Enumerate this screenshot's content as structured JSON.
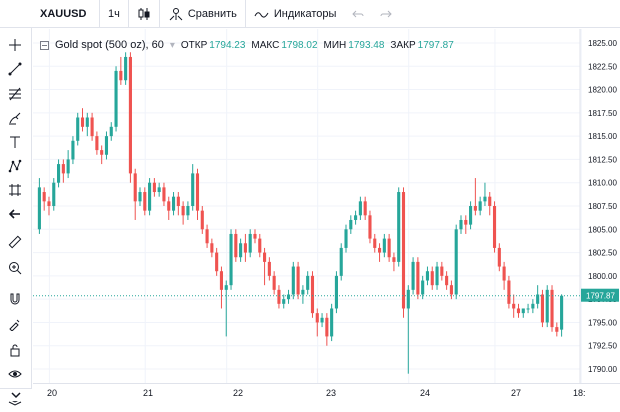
{
  "topbar": {
    "symbol": "XAUUSD",
    "interval": "1ч",
    "compare_label": "Сравнить",
    "indicators_label": "Индикаторы"
  },
  "legend": {
    "title": "Gold spot (500 oz), 60",
    "open_label": "ОТКР",
    "open_value": "1794.23",
    "high_label": "МАКС",
    "high_value": "1798.02",
    "low_label": "МИН",
    "low_value": "1793.48",
    "close_label": "ЗАКР",
    "close_value": "1797.87"
  },
  "colors": {
    "up": "#26a69a",
    "down": "#ef5350",
    "grid": "#f0f3fa",
    "accent": "#26a69a"
  },
  "toolbar_icons": [
    "cursor-cross-icon",
    "trend-line-icon",
    "fib-icon",
    "brush-icon",
    "text-icon",
    "pattern-icon",
    "prediction-icon",
    "back-arrow-icon",
    "ruler-icon",
    "zoom-in-icon",
    "magnet-icon",
    "lock-drawings-icon",
    "unlock-icon",
    "eye-icon",
    "layers-icon",
    "chevron-down-icon"
  ],
  "chart_data": {
    "type": "candlestick",
    "symbol": "XAUUSD",
    "y_ticks": [
      "1825.00",
      "1822.50",
      "1820.00",
      "1817.50",
      "1815.00",
      "1812.50",
      "1810.00",
      "1807.50",
      "1805.00",
      "1802.50",
      "1800.00",
      "1797.50",
      "1795.00",
      "1792.50",
      "1790.00"
    ],
    "ylim": [
      1788.5,
      1826.5
    ],
    "x_ticks": [
      "20",
      "21",
      "22",
      "23",
      "24",
      "27",
      "18:"
    ],
    "last_price": "1797.87",
    "candles": [
      [
        1805.0,
        1810.5,
        1804.5,
        1809.5
      ],
      [
        1809.0,
        1809.5,
        1807.0,
        1808.0
      ],
      [
        1808.0,
        1808.5,
        1806.5,
        1807.5
      ],
      [
        1807.5,
        1810.5,
        1807.0,
        1810.0
      ],
      [
        1810.0,
        1812.5,
        1809.5,
        1812.0
      ],
      [
        1812.0,
        1812.5,
        1810.0,
        1811.0
      ],
      [
        1811.0,
        1813.5,
        1810.5,
        1812.5
      ],
      [
        1812.5,
        1815.0,
        1812.0,
        1814.5
      ],
      [
        1814.5,
        1817.5,
        1814.0,
        1817.0
      ],
      [
        1817.0,
        1818.0,
        1815.5,
        1816.0
      ],
      [
        1816.0,
        1817.5,
        1815.0,
        1817.0
      ],
      [
        1817.0,
        1817.5,
        1814.5,
        1815.0
      ],
      [
        1815.0,
        1815.5,
        1813.0,
        1813.5
      ],
      [
        1813.5,
        1814.0,
        1812.0,
        1813.0
      ],
      [
        1813.0,
        1815.5,
        1812.5,
        1815.0
      ],
      [
        1815.0,
        1816.5,
        1814.5,
        1816.0
      ],
      [
        1816.0,
        1822.5,
        1815.5,
        1822.0
      ],
      [
        1822.0,
        1823.5,
        1820.5,
        1821.0
      ],
      [
        1821.0,
        1824.0,
        1820.5,
        1823.5
      ],
      [
        1823.5,
        1824.0,
        1810.0,
        1811.0
      ],
      [
        1811.0,
        1811.5,
        1806.0,
        1808.0
      ],
      [
        1808.0,
        1809.5,
        1807.5,
        1809.0
      ],
      [
        1809.0,
        1809.5,
        1806.5,
        1807.0
      ],
      [
        1807.0,
        1810.5,
        1806.5,
        1810.0
      ],
      [
        1810.0,
        1810.5,
        1808.5,
        1809.0
      ],
      [
        1809.0,
        1810.0,
        1808.5,
        1809.5
      ],
      [
        1809.5,
        1810.0,
        1807.5,
        1808.0
      ],
      [
        1808.0,
        1808.5,
        1806.0,
        1807.0
      ],
      [
        1807.0,
        1809.0,
        1806.5,
        1808.5
      ],
      [
        1808.5,
        1809.0,
        1806.5,
        1807.5
      ],
      [
        1807.5,
        1808.0,
        1805.5,
        1806.5
      ],
      [
        1806.5,
        1808.0,
        1806.0,
        1807.5
      ],
      [
        1807.5,
        1812.0,
        1807.0,
        1811.0
      ],
      [
        1811.0,
        1811.5,
        1806.0,
        1807.0
      ],
      [
        1807.0,
        1807.5,
        1804.5,
        1805.0
      ],
      [
        1805.0,
        1805.5,
        1803.0,
        1803.5
      ],
      [
        1803.5,
        1804.0,
        1802.0,
        1802.5
      ],
      [
        1802.5,
        1803.0,
        1800.0,
        1800.5
      ],
      [
        1800.5,
        1801.0,
        1796.5,
        1798.5
      ],
      [
        1798.5,
        1799.5,
        1793.5,
        1799.0
      ],
      [
        1799.0,
        1805.0,
        1798.5,
        1804.5
      ],
      [
        1804.5,
        1805.0,
        1801.5,
        1802.0
      ],
      [
        1802.0,
        1804.0,
        1801.5,
        1803.5
      ],
      [
        1803.5,
        1804.5,
        1801.5,
        1802.5
      ],
      [
        1802.5,
        1805.0,
        1802.0,
        1804.5
      ],
      [
        1804.5,
        1805.0,
        1803.5,
        1804.0
      ],
      [
        1804.0,
        1804.5,
        1802.0,
        1802.5
      ],
      [
        1802.5,
        1803.0,
        1799.0,
        1801.5
      ],
      [
        1801.5,
        1802.0,
        1799.5,
        1800.0
      ],
      [
        1800.0,
        1800.5,
        1798.0,
        1798.5
      ],
      [
        1798.5,
        1799.0,
        1796.5,
        1797.0
      ],
      [
        1797.0,
        1798.0,
        1796.5,
        1797.5
      ],
      [
        1797.5,
        1798.5,
        1797.0,
        1798.0
      ],
      [
        1798.0,
        1801.5,
        1797.5,
        1801.0
      ],
      [
        1801.0,
        1801.5,
        1797.5,
        1798.0
      ],
      [
        1798.0,
        1799.0,
        1797.0,
        1798.5
      ],
      [
        1798.5,
        1800.5,
        1798.0,
        1800.0
      ],
      [
        1800.0,
        1800.5,
        1795.5,
        1796.0
      ],
      [
        1796.0,
        1796.5,
        1793.5,
        1795.0
      ],
      [
        1795.0,
        1796.0,
        1794.5,
        1795.5
      ],
      [
        1795.5,
        1796.0,
        1792.5,
        1793.5
      ],
      [
        1793.5,
        1797.0,
        1793.0,
        1796.5
      ],
      [
        1796.5,
        1800.5,
        1796.0,
        1800.0
      ],
      [
        1800.0,
        1803.5,
        1799.5,
        1803.0
      ],
      [
        1803.0,
        1805.5,
        1802.5,
        1805.0
      ],
      [
        1805.0,
        1806.5,
        1804.5,
        1806.0
      ],
      [
        1806.0,
        1807.0,
        1805.5,
        1806.5
      ],
      [
        1806.5,
        1808.5,
        1806.0,
        1808.0
      ],
      [
        1808.0,
        1808.5,
        1806.0,
        1806.5
      ],
      [
        1806.5,
        1807.0,
        1803.5,
        1804.0
      ],
      [
        1804.0,
        1804.5,
        1802.5,
        1803.0
      ],
      [
        1803.0,
        1803.5,
        1801.5,
        1802.5
      ],
      [
        1802.5,
        1804.5,
        1802.0,
        1804.0
      ],
      [
        1804.0,
        1804.5,
        1801.5,
        1802.0
      ],
      [
        1802.0,
        1802.5,
        1800.5,
        1801.5
      ],
      [
        1801.5,
        1809.5,
        1801.0,
        1809.0
      ],
      [
        1809.0,
        1809.5,
        1795.5,
        1796.5
      ],
      [
        1796.5,
        1799.0,
        1789.5,
        1798.5
      ],
      [
        1798.5,
        1802.0,
        1798.0,
        1801.5
      ],
      [
        1801.5,
        1802.0,
        1797.5,
        1798.0
      ],
      [
        1798.0,
        1800.0,
        1797.5,
        1799.5
      ],
      [
        1799.5,
        1801.0,
        1799.0,
        1800.5
      ],
      [
        1800.5,
        1801.0,
        1798.5,
        1799.0
      ],
      [
        1799.0,
        1801.5,
        1798.5,
        1801.0
      ],
      [
        1801.0,
        1801.5,
        1799.5,
        1800.0
      ],
      [
        1800.0,
        1800.5,
        1798.5,
        1799.0
      ],
      [
        1799.0,
        1799.5,
        1797.5,
        1798.0
      ],
      [
        1798.0,
        1805.5,
        1797.5,
        1805.0
      ],
      [
        1805.0,
        1806.5,
        1804.5,
        1806.0
      ],
      [
        1806.0,
        1806.5,
        1804.5,
        1805.5
      ],
      [
        1805.5,
        1808.0,
        1805.0,
        1807.5
      ],
      [
        1807.5,
        1810.5,
        1806.5,
        1807.0
      ],
      [
        1807.0,
        1808.5,
        1806.5,
        1808.0
      ],
      [
        1808.0,
        1810.0,
        1807.5,
        1808.5
      ],
      [
        1808.5,
        1809.0,
        1806.5,
        1807.5
      ],
      [
        1807.5,
        1808.0,
        1802.5,
        1803.0
      ],
      [
        1803.0,
        1803.5,
        1800.5,
        1801.0
      ],
      [
        1801.0,
        1801.5,
        1798.5,
        1799.5
      ],
      [
        1799.5,
        1800.0,
        1796.5,
        1797.0
      ],
      [
        1797.0,
        1798.0,
        1795.5,
        1796.5
      ],
      [
        1796.5,
        1797.0,
        1795.5,
        1796.0
      ],
      [
        1796.0,
        1796.5,
        1795.5,
        1796.5
      ],
      [
        1796.5,
        1797.0,
        1796.0,
        1796.5
      ],
      [
        1796.5,
        1797.5,
        1796.0,
        1797.0
      ],
      [
        1797.0,
        1799.0,
        1796.5,
        1798.0
      ],
      [
        1798.0,
        1798.5,
        1794.5,
        1795.0
      ],
      [
        1795.0,
        1799.0,
        1794.5,
        1798.5
      ],
      [
        1798.5,
        1799.0,
        1794.0,
        1794.5
      ],
      [
        1794.5,
        1795.0,
        1793.5,
        1794.0
      ],
      [
        1794.23,
        1798.02,
        1793.48,
        1797.87
      ]
    ]
  }
}
